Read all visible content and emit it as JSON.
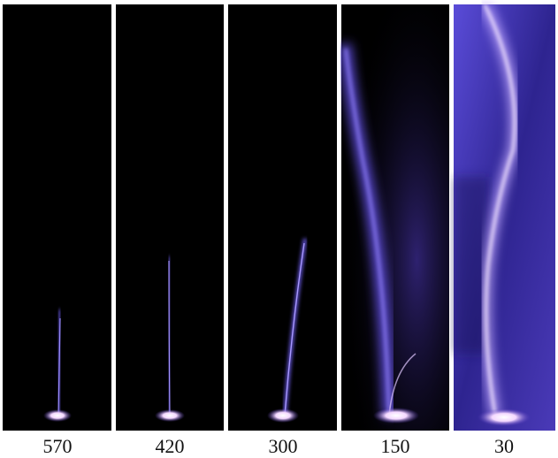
{
  "panels": [
    {
      "label": "570"
    },
    {
      "label": "420"
    },
    {
      "label": "300"
    },
    {
      "label": "150"
    },
    {
      "label": "30"
    }
  ]
}
